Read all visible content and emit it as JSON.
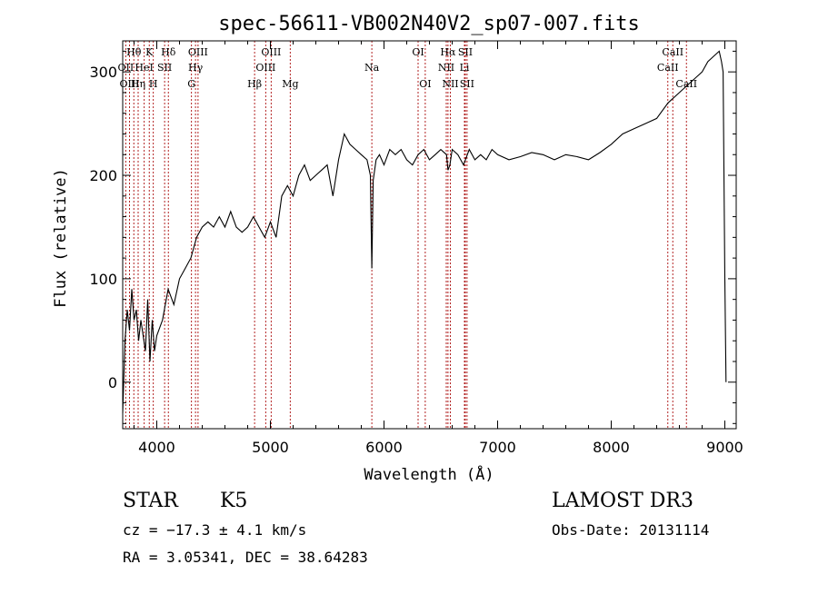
{
  "chart_data": {
    "type": "line",
    "title": "spec-56611-VB002N40V2_sp07-007.fits",
    "xlabel": "Wavelength (Å)",
    "ylabel": "Flux (relative)",
    "xlim": [
      3700,
      9100
    ],
    "ylim": [
      -45,
      330
    ],
    "xticks": [
      4000,
      5000,
      6000,
      7000,
      8000,
      9000
    ],
    "yticks": [
      0,
      100,
      200,
      300
    ],
    "series": [
      {
        "name": "flux",
        "color": "#000000",
        "x": [
          3700,
          3720,
          3740,
          3760,
          3780,
          3800,
          3820,
          3840,
          3860,
          3880,
          3900,
          3920,
          3940,
          3960,
          3980,
          4000,
          4050,
          4100,
          4150,
          4200,
          4250,
          4300,
          4350,
          4400,
          4450,
          4500,
          4550,
          4600,
          4650,
          4700,
          4750,
          4800,
          4850,
          4900,
          4950,
          5000,
          5050,
          5100,
          5150,
          5200,
          5250,
          5300,
          5350,
          5400,
          5450,
          5500,
          5550,
          5600,
          5650,
          5700,
          5750,
          5800,
          5850,
          5880,
          5893,
          5905,
          5930,
          5960,
          6000,
          6050,
          6100,
          6150,
          6200,
          6250,
          6300,
          6350,
          6400,
          6450,
          6500,
          6550,
          6563,
          6580,
          6600,
          6650,
          6700,
          6750,
          6800,
          6850,
          6900,
          6950,
          7000,
          7100,
          7200,
          7300,
          7400,
          7500,
          7600,
          7700,
          7800,
          7900,
          8000,
          8100,
          8200,
          8300,
          8400,
          8500,
          8600,
          8700,
          8800,
          8850,
          8900,
          8950,
          8970,
          8985,
          9000,
          9010
        ],
        "values": [
          -30,
          40,
          70,
          50,
          90,
          60,
          70,
          40,
          60,
          45,
          30,
          80,
          20,
          60,
          30,
          45,
          60,
          90,
          75,
          100,
          110,
          120,
          140,
          150,
          155,
          150,
          160,
          150,
          165,
          150,
          145,
          150,
          160,
          150,
          140,
          155,
          140,
          180,
          190,
          180,
          200,
          210,
          195,
          200,
          205,
          210,
          180,
          215,
          240,
          230,
          225,
          220,
          215,
          200,
          110,
          195,
          215,
          220,
          210,
          225,
          220,
          225,
          215,
          210,
          220,
          225,
          215,
          220,
          225,
          220,
          205,
          210,
          225,
          220,
          210,
          225,
          215,
          220,
          215,
          225,
          220,
          215,
          218,
          222,
          220,
          215,
          220,
          218,
          215,
          222,
          230,
          240,
          245,
          250,
          255,
          270,
          280,
          290,
          300,
          310,
          315,
          320,
          310,
          300,
          100,
          0
        ]
      }
    ],
    "lines": [
      {
        "label": "Hθ",
        "x": 3798,
        "row": 0
      },
      {
        "label": "OII",
        "x": 3727,
        "row": 1
      },
      {
        "label": "OIII",
        "x": 3760,
        "row": 2
      },
      {
        "label": "Hη",
        "x": 3836,
        "row": 2
      },
      {
        "label": "K",
        "x": 3934,
        "row": 0
      },
      {
        "label": "HeI",
        "x": 3889,
        "row": 1
      },
      {
        "label": "SII",
        "x": 4069,
        "row": 1
      },
      {
        "label": "H",
        "x": 3969,
        "row": 2
      },
      {
        "label": "Hδ",
        "x": 4102,
        "row": 0
      },
      {
        "label": "OIII",
        "x": 4363,
        "row": 0
      },
      {
        "label": "Hγ",
        "x": 4341,
        "row": 1
      },
      {
        "label": "G",
        "x": 4305,
        "row": 2
      },
      {
        "label": "Hβ",
        "x": 4861,
        "row": 2
      },
      {
        "label": "OIII",
        "x": 5007,
        "row": 0
      },
      {
        "label": "OIII",
        "x": 4959,
        "row": 1
      },
      {
        "label": "Mg",
        "x": 5175,
        "row": 2
      },
      {
        "label": "Na",
        "x": 5893,
        "row": 1
      },
      {
        "label": "OI",
        "x": 6300,
        "row": 0
      },
      {
        "label": "OI",
        "x": 6363,
        "row": 2
      },
      {
        "label": "Hα",
        "x": 6563,
        "row": 0
      },
      {
        "label": "SII",
        "x": 6716,
        "row": 0
      },
      {
        "label": "NII",
        "x": 6548,
        "row": 1
      },
      {
        "label": "Li",
        "x": 6708,
        "row": 1
      },
      {
        "label": "NII",
        "x": 6584,
        "row": 2
      },
      {
        "label": "SII",
        "x": 6731,
        "row": 2
      },
      {
        "label": "CaII",
        "x": 8542,
        "row": 0
      },
      {
        "label": "CaII",
        "x": 8498,
        "row": 1
      },
      {
        "label": "CaII",
        "x": 8662,
        "row": 2
      }
    ]
  },
  "info": {
    "object_class": "STAR",
    "subclass": "K5",
    "survey": "LAMOST DR3",
    "cz": "cz = −17.3 ± 4.1 km/s",
    "obs_date": "Obs-Date: 20131114",
    "coords": "RA =   3.05341, DEC =  38.64283"
  },
  "colors": {
    "line_marker": "#b22222",
    "axis": "#000000"
  }
}
